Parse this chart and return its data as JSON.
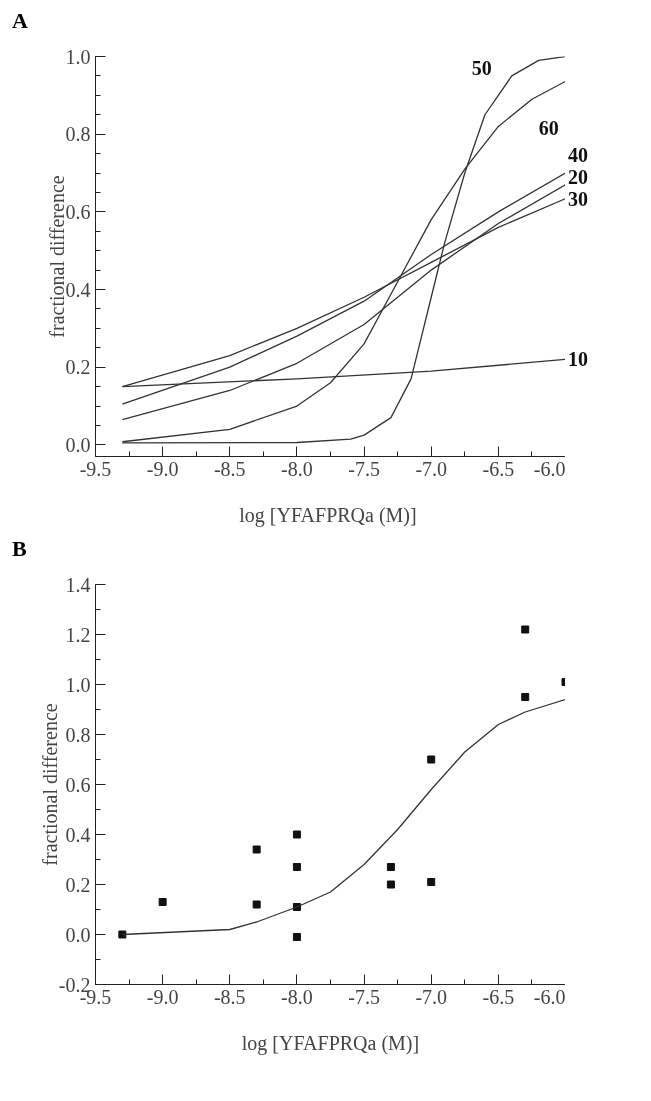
{
  "chart_data": [
    {
      "type": "line",
      "title": "A",
      "xlabel": "log [YFAFPRQa  (M)]",
      "ylabel": "fractional difference",
      "xlim": [
        -9.5,
        -6.0
      ],
      "ylim": [
        -0.03,
        1.0
      ],
      "xticks": [
        {
          "value": -9.5,
          "label": "-9.5"
        },
        {
          "value": -9.0,
          "label": "-9.0"
        },
        {
          "value": -8.5,
          "label": "-8.5"
        },
        {
          "value": -8.0,
          "label": "-8.0"
        },
        {
          "value": -7.5,
          "label": "-7.5"
        },
        {
          "value": -7.0,
          "label": "-7.0"
        },
        {
          "value": -6.5,
          "label": "-6.5"
        },
        {
          "value": -6.0,
          "label": "-6.0"
        }
      ],
      "yticks": [
        {
          "value": 0.0,
          "label": "0.0"
        },
        {
          "value": 0.2,
          "label": "0.2"
        },
        {
          "value": 0.4,
          "label": "0.4"
        },
        {
          "value": 0.6,
          "label": "0.6"
        },
        {
          "value": 0.8,
          "label": "0.8"
        },
        {
          "value": 1.0,
          "label": "1.0"
        }
      ],
      "grid": false,
      "marker": "none",
      "line_style": "solid",
      "series": [
        {
          "name": "10",
          "color": "#333333",
          "x": [
            -9.3,
            -8.0,
            -7.0,
            -6.0
          ],
          "values": [
            0.15,
            0.17,
            0.19,
            0.22
          ]
        },
        {
          "name": "30",
          "color": "#333333",
          "x": [
            -9.3,
            -8.5,
            -8.0,
            -7.5,
            -7.0,
            -6.5,
            -6.0
          ],
          "values": [
            0.15,
            0.23,
            0.3,
            0.38,
            0.47,
            0.56,
            0.634
          ]
        },
        {
          "name": "40",
          "color": "#333333",
          "x": [
            -9.3,
            -8.5,
            -8.0,
            -7.5,
            -7.0,
            -6.5,
            -6.0
          ],
          "values": [
            0.105,
            0.2,
            0.28,
            0.37,
            0.49,
            0.6,
            0.7
          ]
        },
        {
          "name": "20",
          "color": "#333333",
          "x": [
            -9.3,
            -8.5,
            -8.0,
            -7.5,
            -7.0,
            -6.5,
            -6.0
          ],
          "values": [
            0.065,
            0.14,
            0.21,
            0.31,
            0.45,
            0.57,
            0.67
          ]
        },
        {
          "name": "60",
          "color": "#333333",
          "x": [
            -9.3,
            -8.5,
            -8.0,
            -7.75,
            -7.5,
            -7.25,
            -7.0,
            -6.75,
            -6.5,
            -6.25,
            -6.0
          ],
          "values": [
            0.008,
            0.04,
            0.1,
            0.16,
            0.26,
            0.42,
            0.58,
            0.71,
            0.82,
            0.89,
            0.936
          ]
        },
        {
          "name": "50",
          "color": "#333333",
          "x": [
            -9.3,
            -8.0,
            -7.6,
            -7.5,
            -7.3,
            -7.15,
            -7.0,
            -6.9,
            -6.75,
            -6.6,
            -6.4,
            -6.2,
            -6.0
          ],
          "values": [
            0.005,
            0.006,
            0.015,
            0.025,
            0.07,
            0.17,
            0.38,
            0.52,
            0.7,
            0.85,
            0.95,
            0.99,
            1.0
          ]
        }
      ]
    },
    {
      "type": "scatter",
      "title": "B",
      "xlabel": "log [YFAFPRQa (M)]",
      "ylabel": "fractional difference",
      "xlim": [
        -9.5,
        -6.0
      ],
      "ylim": [
        -0.2,
        1.4
      ],
      "xticks": [
        {
          "value": -9.5,
          "label": "-9.5"
        },
        {
          "value": -9.0,
          "label": "-9.0"
        },
        {
          "value": -8.5,
          "label": "-8.5"
        },
        {
          "value": -8.0,
          "label": "-8.0"
        },
        {
          "value": -7.5,
          "label": "-7.5"
        },
        {
          "value": -7.0,
          "label": "-7.0"
        },
        {
          "value": -6.5,
          "label": "-6.5"
        },
        {
          "value": -6.0,
          "label": "-6.0"
        }
      ],
      "yticks": [
        {
          "value": -0.2,
          "label": "-0.2"
        },
        {
          "value": 0.0,
          "label": "0.0"
        },
        {
          "value": 0.2,
          "label": "0.2"
        },
        {
          "value": 0.4,
          "label": "0.4"
        },
        {
          "value": 0.6,
          "label": "0.6"
        },
        {
          "value": 0.8,
          "label": "0.8"
        },
        {
          "value": 1.0,
          "label": "1.0"
        },
        {
          "value": 1.2,
          "label": "1.2"
        },
        {
          "value": 1.4,
          "label": "1.4"
        }
      ],
      "grid": false,
      "marker": "square",
      "series": [
        {
          "type": "scatter",
          "color": "#111111",
          "x": [
            -9.3,
            -9.0,
            -8.3,
            -8.3,
            -8.0,
            -8.0,
            -8.0,
            -8.0,
            -7.3,
            -7.3,
            -7.0,
            -7.0,
            -6.3,
            -6.3,
            -6.0
          ],
          "values": [
            0.0,
            0.13,
            0.34,
            0.12,
            0.4,
            0.27,
            0.11,
            -0.01,
            0.27,
            0.2,
            0.7,
            0.21,
            1.22,
            0.95,
            1.01
          ]
        },
        {
          "type": "line",
          "color": "#333333",
          "marker": "none",
          "line_style": "solid",
          "x": [
            -9.3,
            -8.5,
            -8.3,
            -8.0,
            -7.75,
            -7.5,
            -7.25,
            -7.0,
            -6.75,
            -6.5,
            -6.3,
            -6.0
          ],
          "values": [
            0.0,
            0.02,
            0.05,
            0.11,
            0.17,
            0.28,
            0.42,
            0.58,
            0.73,
            0.84,
            0.89,
            0.94
          ]
        }
      ]
    }
  ]
}
